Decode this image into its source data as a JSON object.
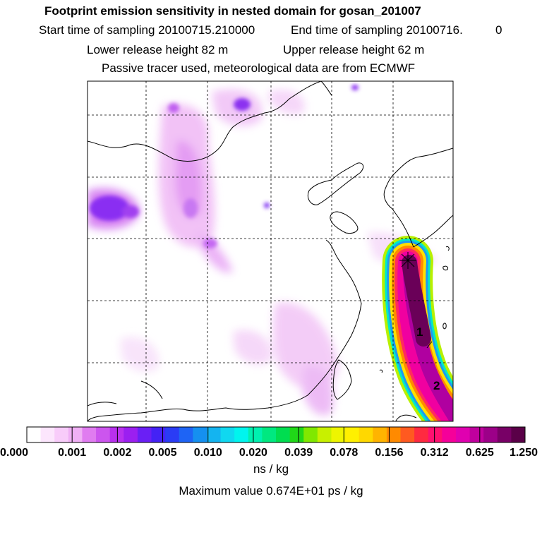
{
  "header": {
    "title": "Footprint emission sensitivity in nested domain for gosan_201007",
    "start_label": "Start time of sampling 20100715.210000",
    "end_label": "End time of sampling 20100716.",
    "end_suffix": "0",
    "lower_label": "Lower release height   82 m",
    "upper_label": "Upper release height   62 m",
    "tracer_label": "Passive tracer used, meteorological data are from ECMWF"
  },
  "map": {
    "markers": [
      "1",
      "2"
    ]
  },
  "colorbar": {
    "ticks": [
      "0.000",
      "0.001",
      "0.002",
      "0.005",
      "0.010",
      "0.020",
      "0.039",
      "0.078",
      "0.156",
      "0.312",
      "0.625",
      "1.250"
    ],
    "colors": [
      "#ffffff",
      "#fce6fd",
      "#f8ccfa",
      "#f0b0f5",
      "#e07cf0",
      "#cc55ee",
      "#b830ee",
      "#9b1ff0",
      "#6a1ff5",
      "#4422f5",
      "#2a3cf5",
      "#1e64f5",
      "#1590f0",
      "#14b4f0",
      "#10d8f0",
      "#00f5ee",
      "#00f0b0",
      "#00e880",
      "#00dd50",
      "#20d818",
      "#80e800",
      "#c8f000",
      "#eef500",
      "#fff000",
      "#ffd800",
      "#ffb400",
      "#ff8a00",
      "#ff5a20",
      "#ff2a40",
      "#ff1070",
      "#f5009a",
      "#e000b0",
      "#c0009e",
      "#9c0088",
      "#780066",
      "#5a0048"
    ],
    "units": "ns / kg"
  },
  "footer": {
    "max_value": "Maximum value  0.674E+01 ps / kg"
  }
}
